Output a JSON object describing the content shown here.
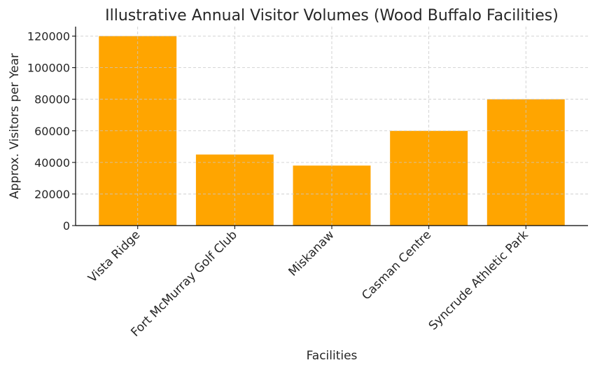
{
  "chart_data": {
    "type": "bar",
    "title": "Illustrative Annual Visitor Volumes (Wood Buffalo Facilities)",
    "xlabel": "Facilities",
    "ylabel": "Approx. Visitors per Year",
    "categories": [
      "Vista Ridge",
      "Fort McMurray Golf Club",
      "Miskanaw",
      "Casman Centre",
      "Syncrude Athletic Park"
    ],
    "values": [
      120000,
      45000,
      38000,
      60000,
      80000
    ],
    "ylim": [
      0,
      126000
    ],
    "yticks": [
      0,
      20000,
      40000,
      60000,
      80000,
      100000,
      120000
    ],
    "grid": true,
    "bar_color": "#FFA500"
  }
}
